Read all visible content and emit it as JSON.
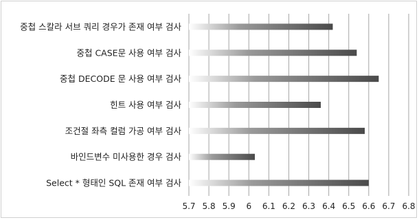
{
  "chart_data": {
    "type": "bar",
    "orientation": "horizontal",
    "categories": [
      "중첩 스칼라 서브 쿼리 경우가 존재 여부 검사",
      "중첩 CASE문 사용 여부 검사",
      "중첩 DECODE 문 사용 여부 검사",
      "힌트 사용 여부 검사",
      "조건절 좌측 컬럼 가공 여부 검사",
      "바인드변수 미사용한 경우 검사",
      "Select * 형태인 SQL 존재 여부 검사"
    ],
    "values": [
      6.42,
      6.54,
      6.65,
      6.36,
      6.58,
      6.03,
      6.6
    ],
    "title": "",
    "xlabel": "",
    "ylabel": "",
    "xlim": [
      5.7,
      6.8
    ],
    "x_ticks": [
      "5.7",
      "5.8",
      "5.9",
      "6",
      "6.1",
      "6.2",
      "6.3",
      "6.4",
      "6.5",
      "6.6",
      "6.7",
      "6.8"
    ],
    "grid": "vertical",
    "legend": "none",
    "colors": {
      "bar_start": "#ffffff",
      "bar_end": "#4a4a4a",
      "grid": "#a6a6a6",
      "text": "#222222"
    }
  }
}
